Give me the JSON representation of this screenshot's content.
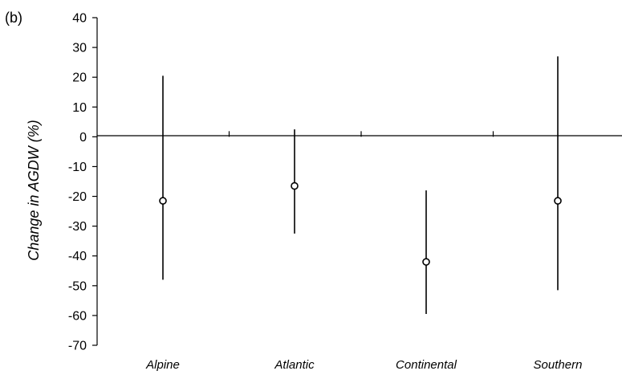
{
  "panel_label": "(b)",
  "chart_data": {
    "type": "scatter",
    "title": "",
    "xlabel": "",
    "ylabel": "Change in AGDW (%)",
    "categories": [
      "Alpine",
      "Atlantic",
      "Continental",
      "Southern"
    ],
    "series": [
      {
        "values": [
          -21.5,
          -16.5,
          -42,
          -21.5
        ],
        "lower": [
          -48,
          -32.5,
          -59.5,
          -51.5
        ],
        "upper": [
          20.5,
          2.5,
          -18,
          27
        ]
      }
    ],
    "ylim": [
      -70,
      40
    ],
    "yticks": [
      40,
      30,
      20,
      10,
      0,
      -10,
      -20,
      -30,
      -40,
      -50,
      -60,
      -70
    ],
    "grid": false,
    "legend": "none",
    "colors": {
      "axis": "#000000",
      "marker_fill": "#ffffff",
      "marker_stroke": "#000000",
      "errorbar": "#000000"
    }
  }
}
